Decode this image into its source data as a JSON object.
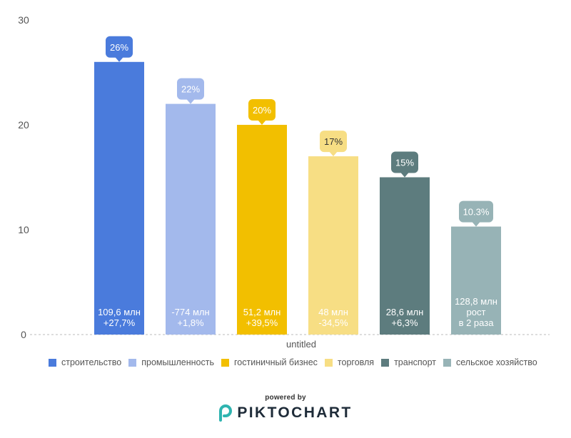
{
  "chart_data": {
    "type": "bar",
    "xlabel": "untitled",
    "ylim": [
      0,
      30
    ],
    "y_ticks": [
      0,
      10,
      20,
      30
    ],
    "grid": false,
    "legend_position": "bottom",
    "categories": [
      "строительство",
      "промышленность",
      "гостиничный бизнес",
      "торговля",
      "транспорт",
      "сельское хозяйство"
    ],
    "values": [
      26,
      22,
      20,
      17,
      15,
      10.3
    ],
    "value_labels": [
      "26%",
      "22%",
      "20%",
      "17%",
      "15%",
      "10.3%"
    ],
    "bar_annotations": [
      [
        "109,6 млн",
        "+27,7%"
      ],
      [
        "-774 млн",
        "+1,8%"
      ],
      [
        "51,2 млн",
        "+39,5%"
      ],
      [
        "48 млн",
        "-34,5%"
      ],
      [
        "28,6 млн",
        "+6,3%"
      ],
      [
        "128,8 млн",
        "рост",
        "в 2 раза"
      ]
    ],
    "colors": [
      "#4a7bdc",
      "#a3b9ec",
      "#f2bf00",
      "#f7de84",
      "#5d7c7e",
      "#97b3b6"
    ],
    "callout_text_colors": [
      "#ffffff",
      "#ffffff",
      "#ffffff",
      "#333333",
      "#ffffff",
      "#ffffff"
    ]
  },
  "footer": {
    "powered_by": "powered by",
    "brand": "PIKTOCHART"
  }
}
